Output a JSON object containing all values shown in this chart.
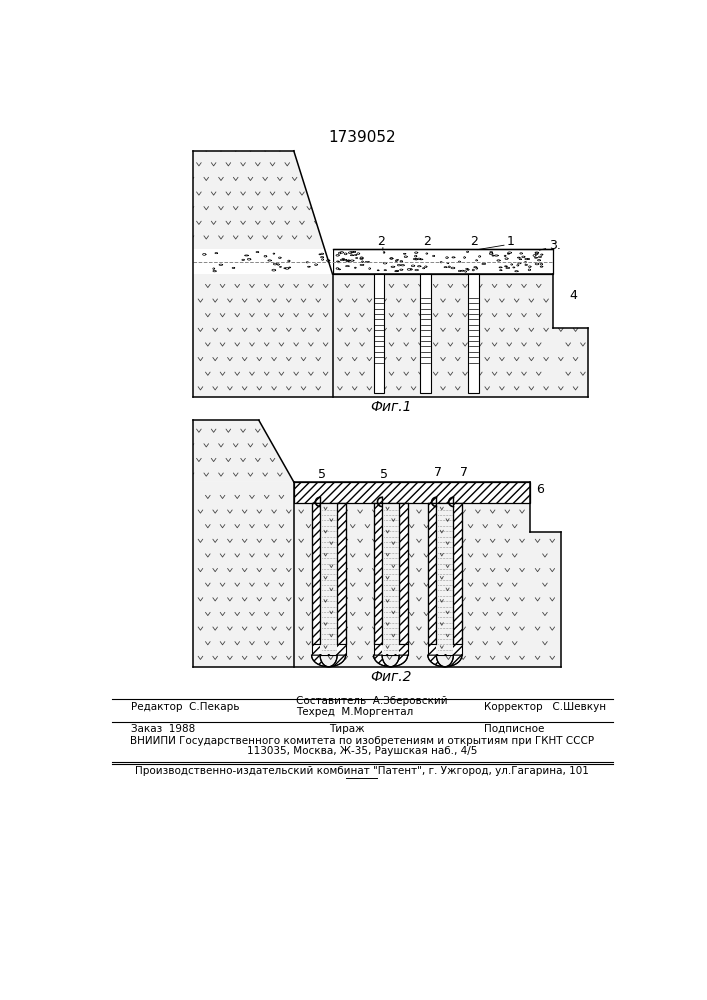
{
  "title": "1739052",
  "fig1_label": "Фиг.1",
  "fig2_label": "Фиг.2",
  "bg_color": "#ffffff",
  "rock_fill": "#f2f2f2",
  "hatch_fill": "#e8e8e8",
  "line_color": "#000000",
  "footer_line1_left": "Редактор  С.Пекарь",
  "footer_line1_center1": "Составитель  А.Зберовский",
  "footer_line1_center2": "Техред  М.Моргентал",
  "footer_line1_right": "Корректор   С.Шевкун",
  "footer_line2_left": "Заказ  1988",
  "footer_line2_center": "Тираж",
  "footer_line2_right": "Подписное",
  "footer_line3": "ВНИИПИ Государственного комитета по изобретениям и открытиям при ГКНТ СССР",
  "footer_line4": "113035, Москва, Ж-35, Раушская наб., 4/5",
  "footer_line5": "Производственно-издательский комбинат \"Патент\", г. Ужгород, ул.Гагарина, 101"
}
